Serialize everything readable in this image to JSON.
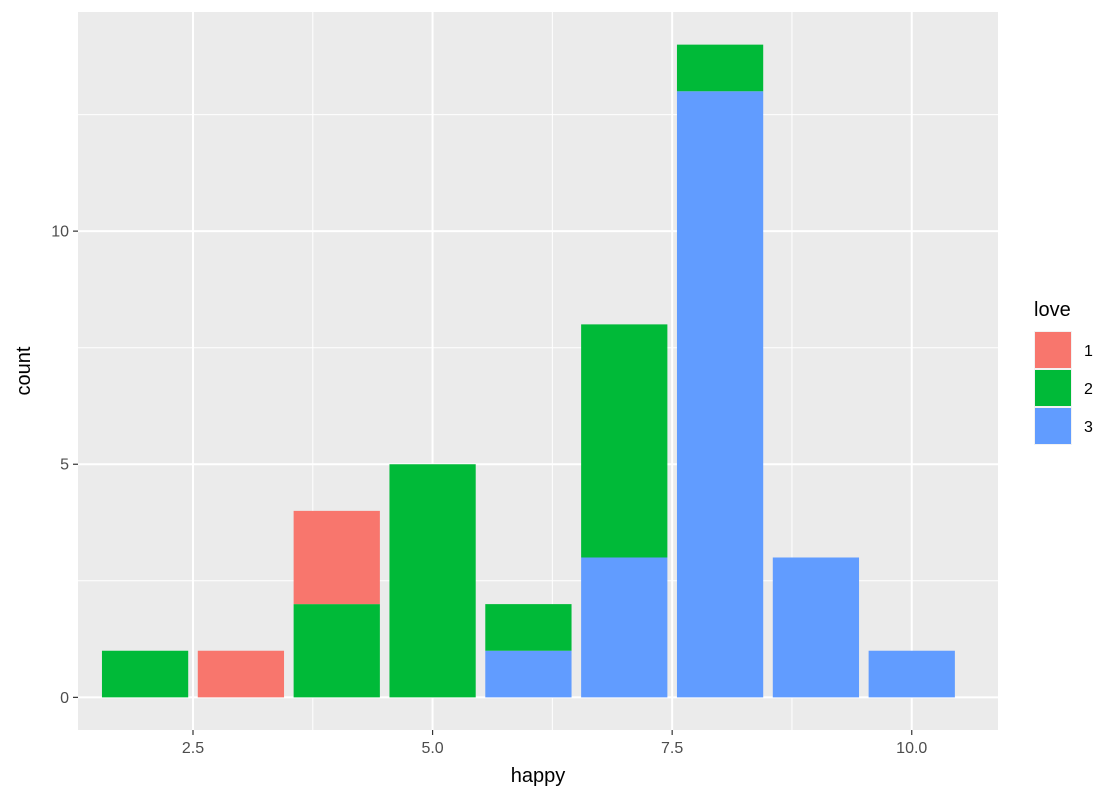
{
  "chart_data": {
    "type": "bar",
    "stacked": true,
    "xlabel": "happy",
    "ylabel": "count",
    "x_ticks": [
      "2.5",
      "5.0",
      "7.5",
      "10.0"
    ],
    "x_tick_values": [
      2.5,
      5.0,
      7.5,
      10.0
    ],
    "y_ticks": [
      "0",
      "5",
      "10"
    ],
    "y_tick_values": [
      0,
      5,
      10
    ],
    "xlim": [
      1.3,
      10.9
    ],
    "ylim": [
      -0.7,
      14.7
    ],
    "grid": true,
    "legend": {
      "title": "love",
      "position": "right",
      "entries": [
        {
          "label": "1",
          "color": "#F8766D"
        },
        {
          "label": "2",
          "color": "#00BA38"
        },
        {
          "label": "3",
          "color": "#619CFF"
        }
      ]
    },
    "categories": [
      2,
      3,
      4,
      5,
      6,
      7,
      8,
      9,
      10
    ],
    "series": [
      {
        "name": "3",
        "color": "#619CFF",
        "values": [
          0,
          0,
          0,
          0,
          1,
          3,
          13,
          3,
          1
        ]
      },
      {
        "name": "2",
        "color": "#00BA38",
        "values": [
          1,
          0,
          2,
          5,
          1,
          5,
          1,
          0,
          0
        ]
      },
      {
        "name": "1",
        "color": "#F8766D",
        "values": [
          0,
          1,
          2,
          0,
          0,
          0,
          0,
          0,
          0
        ]
      }
    ]
  }
}
